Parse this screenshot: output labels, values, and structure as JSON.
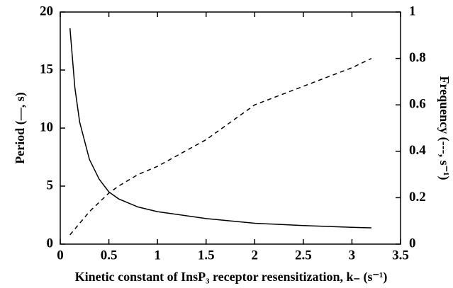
{
  "chart_data": {
    "type": "line",
    "x_label": "Kinetic constant of InsP₃ receptor resensitization, k₋ (s⁻¹)",
    "y_label": "Period (—, s)",
    "y2_label": "Frequency (---, s⁻¹)",
    "xlim": [
      0,
      3.5
    ],
    "xticks": [
      0,
      0.5,
      1,
      1.5,
      2,
      2.5,
      3,
      3.5
    ],
    "ylim": [
      0,
      20
    ],
    "yticks": [
      0,
      5,
      10,
      15,
      20
    ],
    "y2lim": [
      0,
      1
    ],
    "y2ticks": [
      0,
      0.2,
      0.4,
      0.6,
      0.8,
      1
    ],
    "series": [
      {
        "color": "#000000",
        "style": "solid",
        "axis": "y",
        "x": [
          0.1,
          0.15,
          0.2,
          0.3,
          0.4,
          0.5,
          0.6,
          0.8,
          1.0,
          1.5,
          2.0,
          2.5,
          3.0,
          3.2
        ],
        "values": [
          18.6,
          13.5,
          10.5,
          7.3,
          5.6,
          4.5,
          3.9,
          3.2,
          2.8,
          2.2,
          1.8,
          1.6,
          1.45,
          1.4
        ]
      },
      {
        "color": "#000000",
        "style": "dashed",
        "axis": "y2",
        "x": [
          0.1,
          0.2,
          0.3,
          0.4,
          0.5,
          0.6,
          0.8,
          1.0,
          1.5,
          2.0,
          2.5,
          3.0,
          3.2
        ],
        "values": [
          0.04,
          0.09,
          0.14,
          0.18,
          0.22,
          0.25,
          0.3,
          0.335,
          0.45,
          0.6,
          0.68,
          0.76,
          0.8
        ]
      }
    ]
  }
}
